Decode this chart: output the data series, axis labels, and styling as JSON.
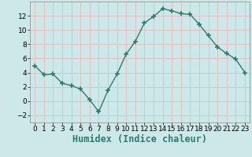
{
  "x": [
    0,
    1,
    2,
    3,
    4,
    5,
    6,
    7,
    8,
    9,
    10,
    11,
    12,
    13,
    14,
    15,
    16,
    17,
    18,
    19,
    20,
    21,
    22,
    23
  ],
  "y": [
    5,
    3.7,
    3.8,
    2.5,
    2.2,
    1.7,
    0.2,
    -1.5,
    1.5,
    3.8,
    6.6,
    8.4,
    11.0,
    11.9,
    13.0,
    12.7,
    12.3,
    12.2,
    10.8,
    9.2,
    7.6,
    6.7,
    5.9,
    4.0
  ],
  "line_color": "#2d7d6e",
  "marker": "+",
  "marker_size": 4,
  "marker_lw": 1.2,
  "bg_color": "#cce8e8",
  "grid_color": "#e8b8b8",
  "xlabel": "Humidex (Indice chaleur)",
  "xlim": [
    -0.5,
    23.5
  ],
  "ylim": [
    -3,
    14
  ],
  "yticks": [
    -2,
    0,
    2,
    4,
    6,
    8,
    10,
    12
  ],
  "xticks": [
    0,
    1,
    2,
    3,
    4,
    5,
    6,
    7,
    8,
    9,
    10,
    11,
    12,
    13,
    14,
    15,
    16,
    17,
    18,
    19,
    20,
    21,
    22,
    23
  ],
  "tick_label_size": 6.5,
  "xlabel_size": 8.5,
  "line_width": 1.0
}
